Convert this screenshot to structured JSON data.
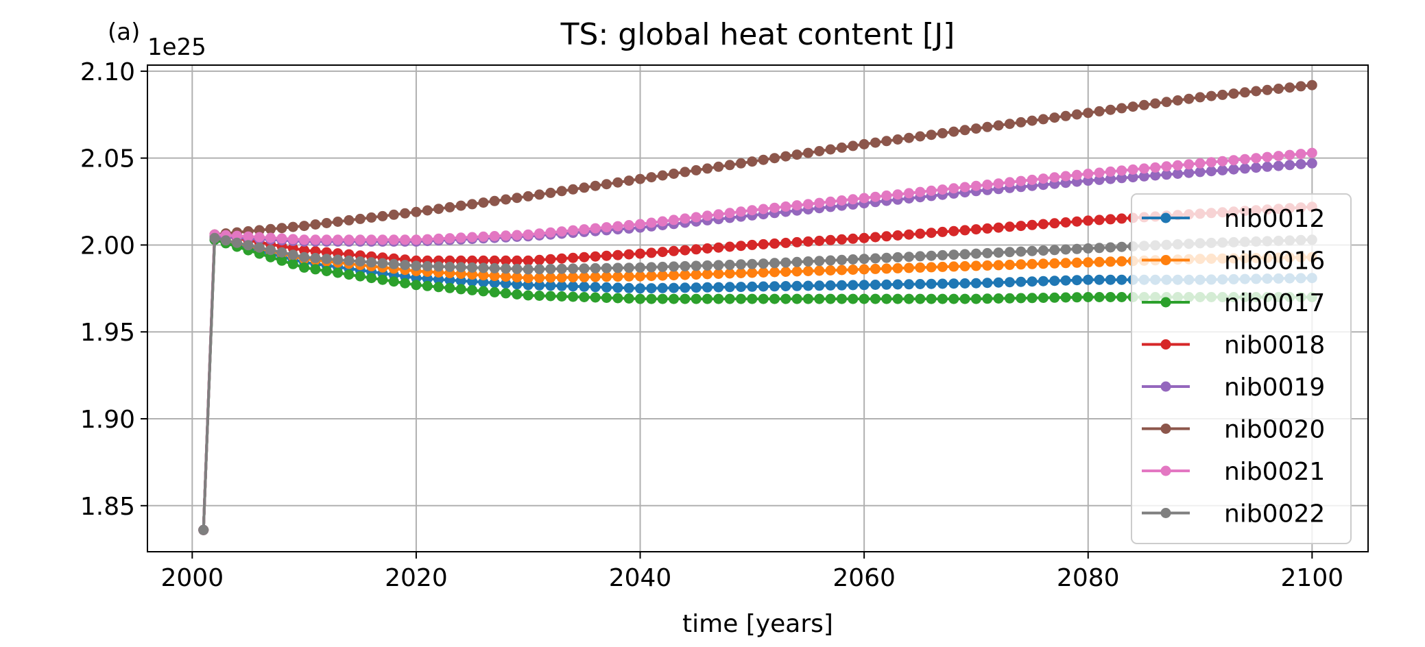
{
  "chart_data": {
    "type": "line",
    "panel_label": "(a)",
    "title": "TS: global heat content [J]",
    "xlabel": "time [years]",
    "ylabel": "",
    "y_offset_label": "1e25",
    "xlim": [
      1996,
      2105
    ],
    "ylim": [
      1.8235,
      2.1035
    ],
    "xticks": [
      2000,
      2020,
      2040,
      2060,
      2080,
      2100
    ],
    "yticks": [
      1.85,
      1.9,
      1.95,
      2.0,
      2.05,
      2.1
    ],
    "ytick_labels": [
      "1.85",
      "1.90",
      "1.95",
      "2.00",
      "2.05",
      "2.10"
    ],
    "grid": true,
    "legend_position": "center-right",
    "marker": "circle",
    "initial_point": {
      "x": 2001,
      "y": 1.836
    },
    "x": [
      2002,
      2010,
      2020,
      2030,
      2040,
      2050,
      2060,
      2070,
      2080,
      2090,
      2100
    ],
    "series": [
      {
        "name": "nib0012",
        "color": "#1f77b4",
        "values": [
          2.003,
          1.99,
          1.981,
          1.977,
          1.975,
          1.976,
          1.977,
          1.978,
          1.98,
          1.98,
          1.981
        ]
      },
      {
        "name": "nib0016",
        "color": "#ff7f0e",
        "values": [
          2.004,
          1.992,
          1.985,
          1.981,
          1.982,
          1.984,
          1.986,
          1.988,
          1.99,
          1.992,
          1.993
        ]
      },
      {
        "name": "nib0017",
        "color": "#2ca02c",
        "values": [
          2.003,
          1.987,
          1.977,
          1.971,
          1.969,
          1.969,
          1.969,
          1.969,
          1.97,
          1.97,
          1.97
        ]
      },
      {
        "name": "nib0018",
        "color": "#d62728",
        "values": [
          2.006,
          1.997,
          1.991,
          1.991,
          1.995,
          2.0,
          2.004,
          2.009,
          2.014,
          2.018,
          2.022
        ]
      },
      {
        "name": "nib0019",
        "color": "#9467bd",
        "values": [
          2.005,
          2.002,
          2.002,
          2.005,
          2.01,
          2.017,
          2.024,
          2.031,
          2.037,
          2.042,
          2.047
        ]
      },
      {
        "name": "nib0020",
        "color": "#8c564b",
        "values": [
          2.006,
          2.011,
          2.019,
          2.028,
          2.038,
          2.048,
          2.058,
          2.067,
          2.076,
          2.085,
          2.092
        ]
      },
      {
        "name": "nib0021",
        "color": "#e377c2",
        "values": [
          2.006,
          2.003,
          2.003,
          2.006,
          2.012,
          2.02,
          2.027,
          2.034,
          2.041,
          2.047,
          2.053
        ]
      },
      {
        "name": "nib0022",
        "color": "#7f7f7f",
        "values": [
          2.004,
          1.993,
          1.988,
          1.986,
          1.987,
          1.989,
          1.992,
          1.995,
          1.998,
          2.001,
          2.003
        ]
      }
    ]
  }
}
